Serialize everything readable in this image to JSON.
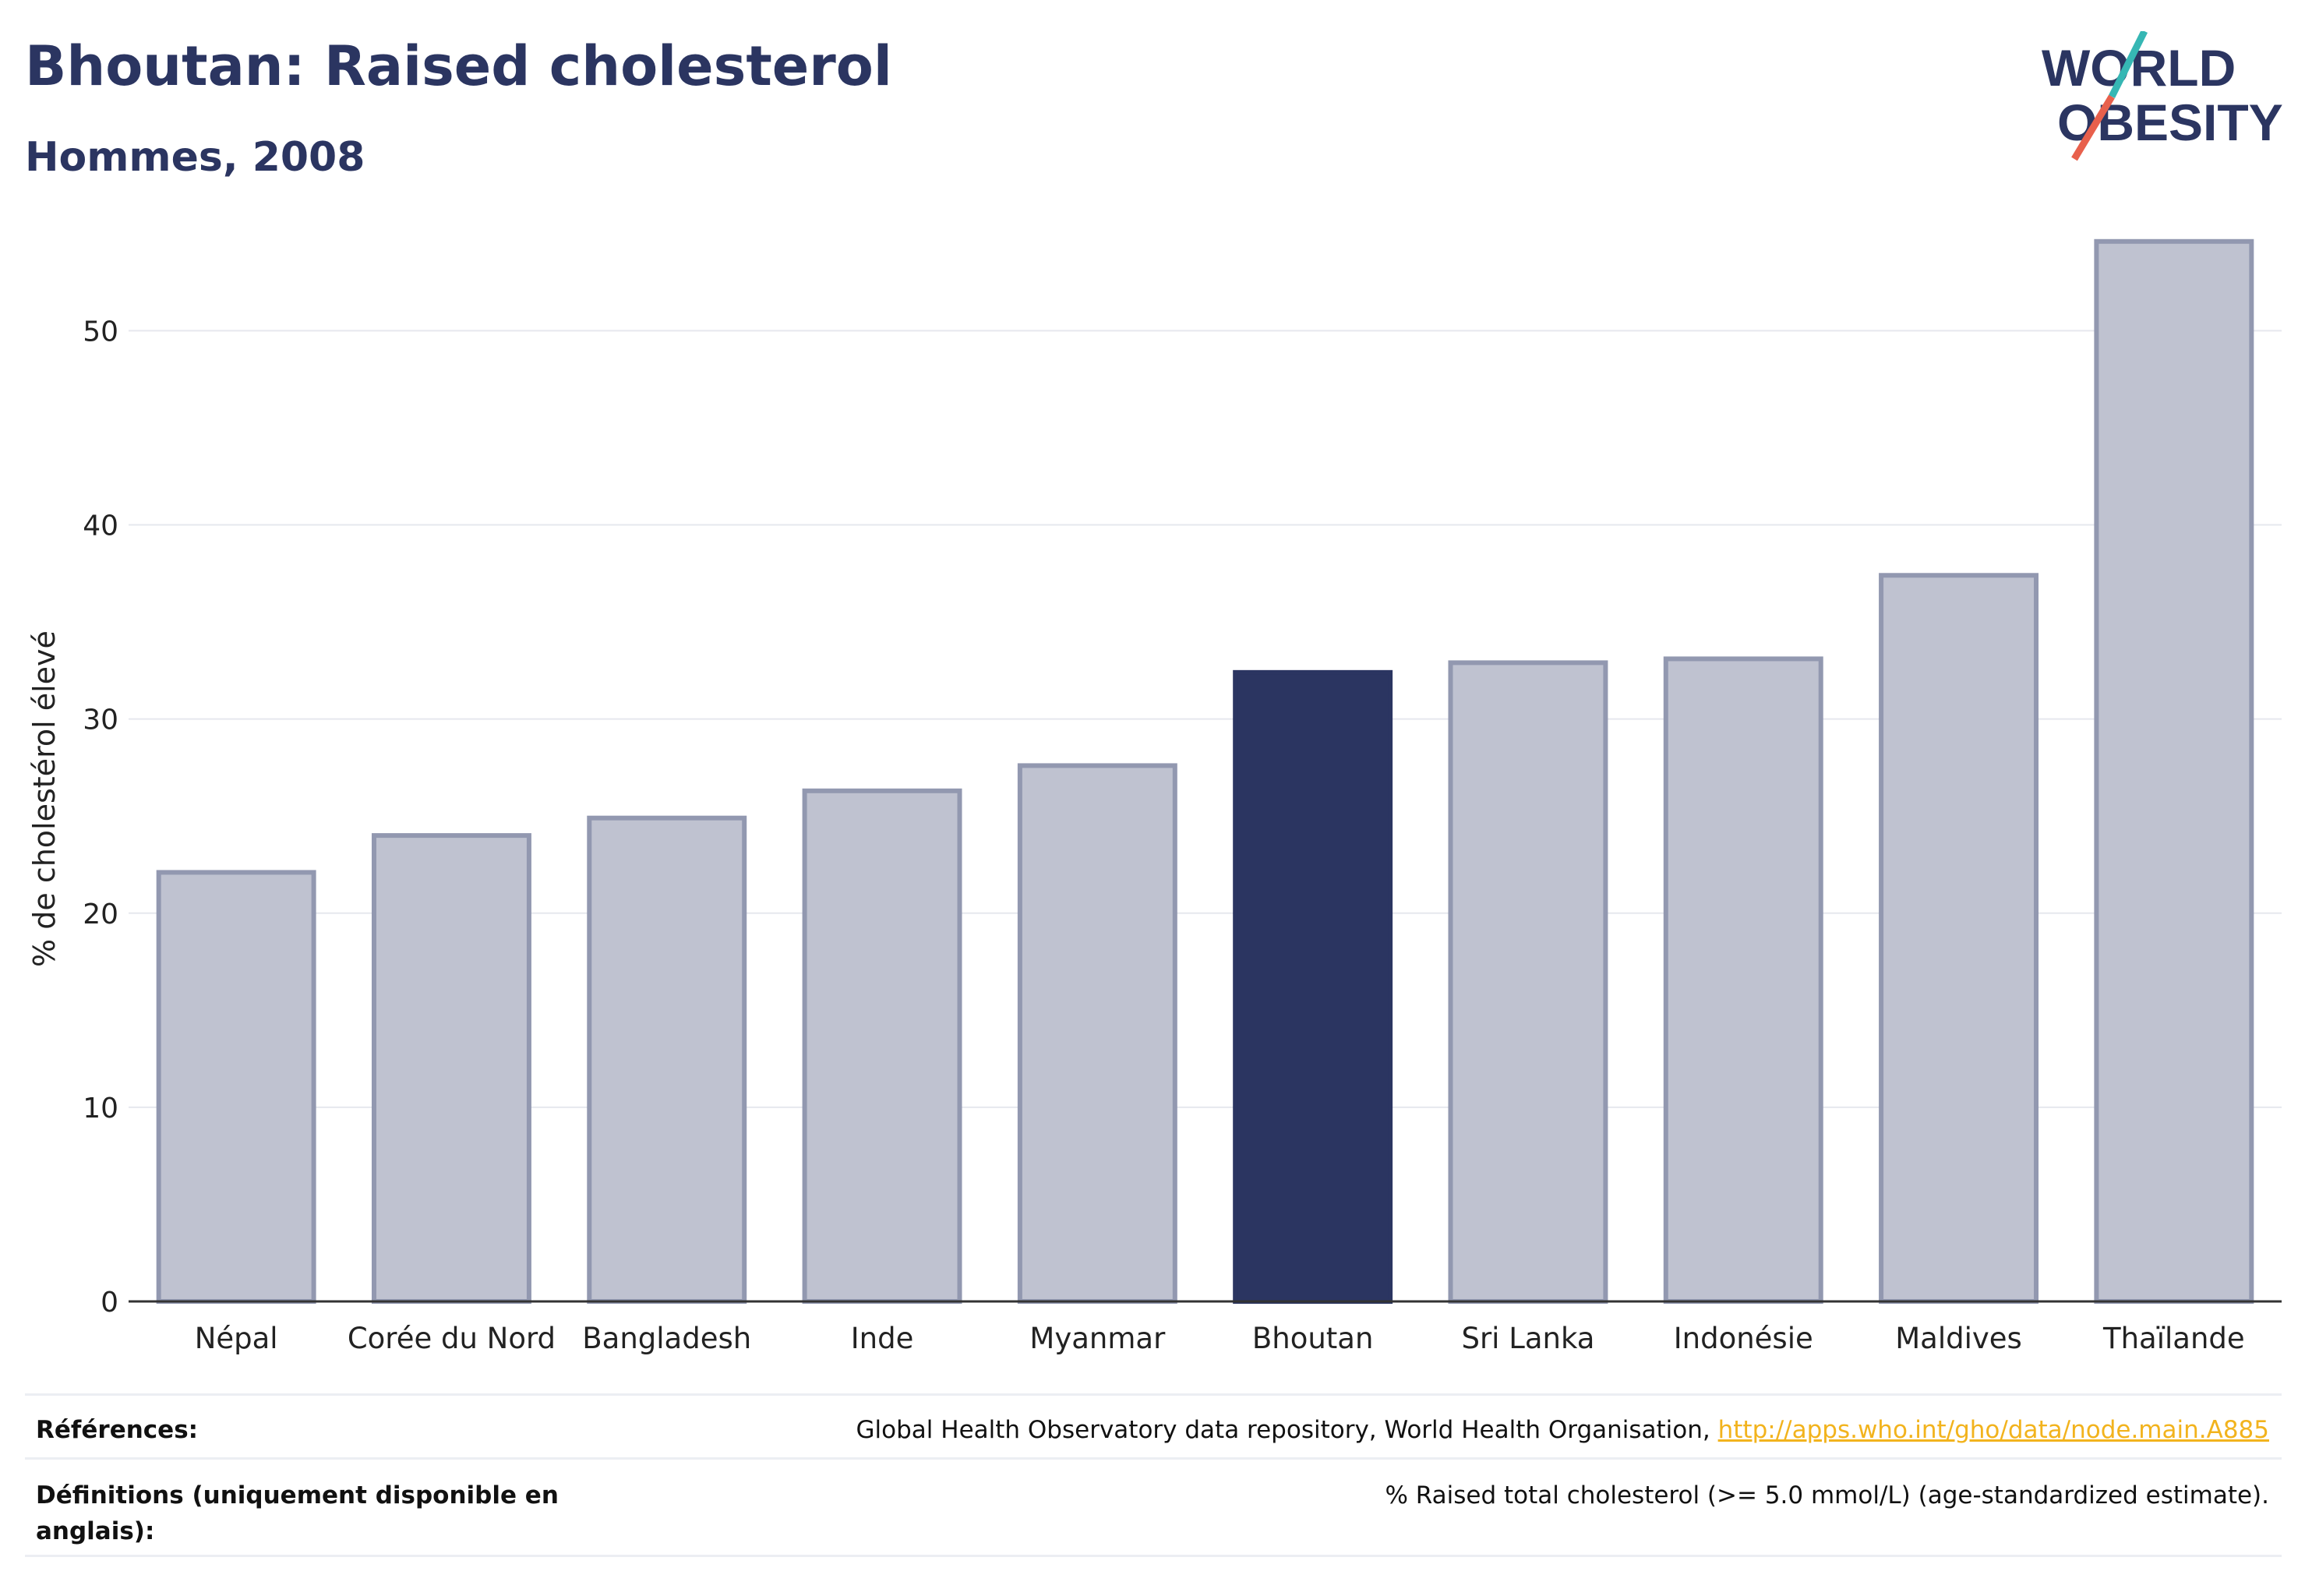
{
  "header": {
    "title": "Bhoutan: Raised cholesterol",
    "subtitle": "Hommes, 2008"
  },
  "logo": {
    "line1": "WORLD",
    "line2": "OBESITY"
  },
  "chart_data": {
    "type": "bar",
    "title": "Bhoutan: Raised cholesterol",
    "subtitle": "Hommes, 2008",
    "xlabel": "",
    "ylabel": "% de cholestérol élevé",
    "ylim": [
      0,
      57
    ],
    "yticks": [
      0,
      10,
      20,
      30,
      40,
      50
    ],
    "grid": true,
    "categories": [
      "Népal",
      "Corée du Nord",
      "Bangladesh",
      "Inde",
      "Myanmar",
      "Bhoutan",
      "Sri Lanka",
      "Indonésie",
      "Maldives",
      "Thaïlande"
    ],
    "values": [
      22.1,
      24.0,
      24.9,
      26.3,
      27.6,
      32.4,
      32.9,
      33.1,
      37.4,
      54.6
    ],
    "highlight": "Bhoutan",
    "colors": {
      "bar": "#bfc2d0",
      "bar_edge": "#9298b0",
      "highlight": "#2b3561"
    }
  },
  "footer": {
    "references_label": "Références:",
    "references_text": "Global Health Observatory data repository, World Health Organisation, ",
    "references_link": "http://apps.who.int/gho/data/node.main.A885",
    "definitions_label_1": "Définitions (uniquement disponible en",
    "definitions_label_2": "anglais):",
    "definitions_text": "% Raised total cholesterol (>= 5.0 mmol/L) (age-standardized estimate)."
  }
}
